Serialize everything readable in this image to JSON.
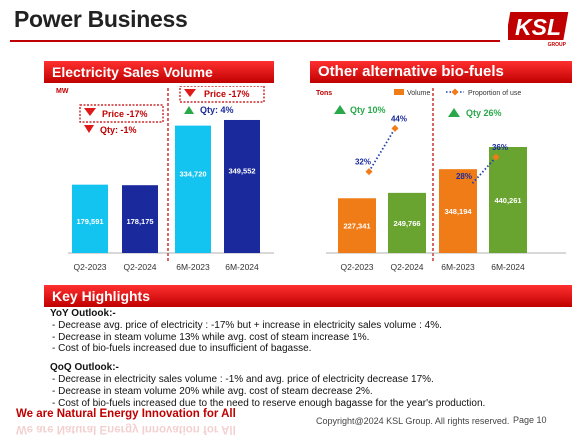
{
  "page": {
    "title": "Power Business",
    "logo_text": "KSL",
    "logo_sub": "GROUP",
    "tagline": "We are Natural Energy Innovation for All",
    "copyright": "Copyright@2024 KSL Group. All rights reserved.",
    "page_label": "Page 10"
  },
  "colors": {
    "brand_red": "#c00000",
    "header_red_top": "#ff3030",
    "cyan_bar": "#14c4f0",
    "navy_bar": "#1a2a9c",
    "orange_bar": "#f07c18",
    "green_bar": "#6aa430",
    "green_arrow": "#2aa84a",
    "red_arrow": "#e01818",
    "proportion_line": "#1f3faa"
  },
  "electricity": {
    "header": "Electricity Sales Volume",
    "unit": "MW",
    "qoq_price": "Price -17%",
    "qoq_qty": "Qty: -1%",
    "ytd_price": "Price -17%",
    "ytd_qty": "Qty: 4%"
  },
  "biofuel": {
    "header": "Other alternative bio-fuels",
    "unit": "Tons",
    "legend_volume": "Volume",
    "legend_proportion": "Proportion of use",
    "qoq_qty": "Qty 10%",
    "ytd_qty": "Qty 26%"
  },
  "chart_data": [
    {
      "type": "bar",
      "ylabel": "MW",
      "categories": [
        "Q2-2023",
        "Q2-2024",
        "6M-2023",
        "6M-2024"
      ],
      "values": [
        179591,
        178175,
        334720,
        349552
      ],
      "value_labels": [
        "179,591",
        "178,175",
        "334,720",
        "349,552"
      ],
      "ylim": [
        0,
        360000
      ],
      "grid": false
    },
    {
      "type": "bar",
      "ylabel": "Tons",
      "categories": [
        "Q2-2023",
        "Q2-2024",
        "6M-2023",
        "6M-2024"
      ],
      "series": [
        {
          "name": "Volume",
          "values": [
            227341,
            249766,
            348194,
            440261
          ],
          "value_labels": [
            "227,341",
            "249,766",
            "348,194",
            "440,261"
          ]
        },
        {
          "name": "Proportion of use",
          "values": [
            32,
            44,
            28,
            36
          ],
          "value_labels": [
            "32%",
            "44%",
            "28%",
            "36%"
          ]
        }
      ],
      "ylim": [
        0,
        1000000
      ],
      "legend": "top-right",
      "grid": false
    }
  ],
  "highlights": {
    "header": "Key Highlights",
    "yoy_heading": "YoY Outlook:-",
    "yoy_items": [
      "- Decrease avg. price of electricity : -17% but + increase in electricity sales volume : 4%.",
      "- Decrease in steam volume 13% while avg. cost of steam increase 1%.",
      "- Cost of bio-fuels increased due to insufficient of bagasse."
    ],
    "qoq_heading": "QoQ Outlook:-",
    "qoq_items": [
      "- Decrease in electricity sales volume : -1% and avg. price of electricity decrease 17%.",
      "- Decrease in steam volume 20% while avg. cost of steam decrease 2%.",
      "- Cost of bio-fuels increased due to the need to reserve enough bagasse for the year's production."
    ]
  }
}
